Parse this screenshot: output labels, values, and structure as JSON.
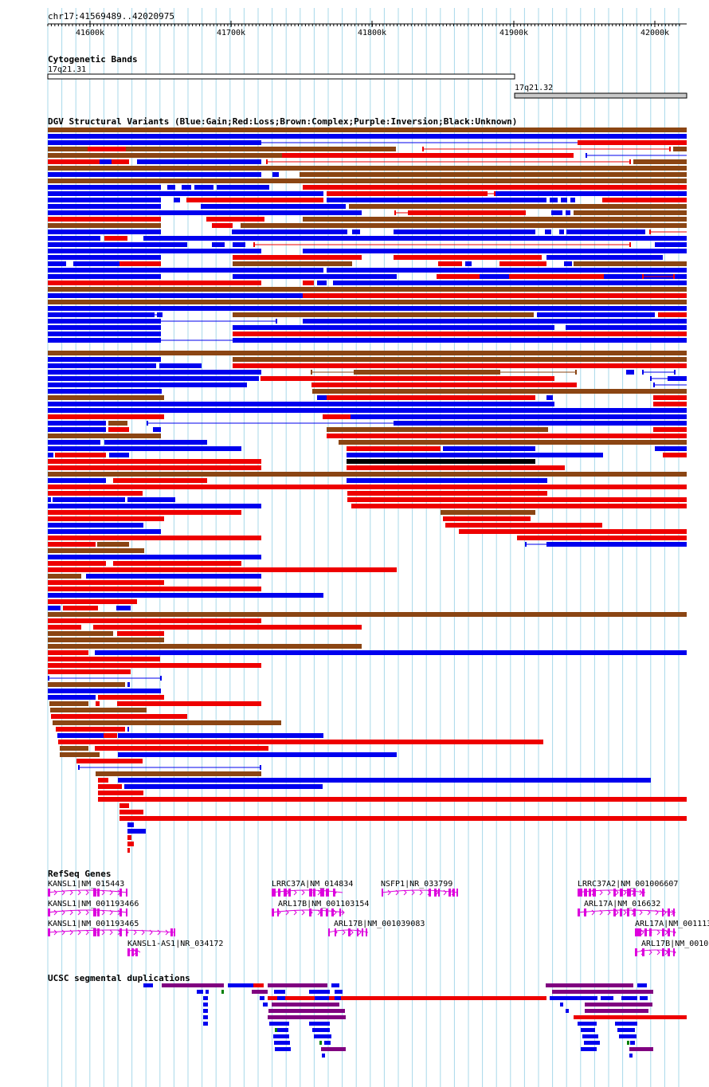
{
  "region": "chr17:41569489..42020975",
  "ruler": {
    "ticks": [
      "41600k",
      "41700k",
      "41800k",
      "41900k",
      "42000k"
    ]
  },
  "tracks": {
    "cytoband": {
      "title": "Cytogenetic Bands",
      "bands": [
        {
          "name": "17q21.31",
          "stain": "white"
        },
        {
          "name": "17q21.32",
          "stain": "gray"
        }
      ]
    },
    "dgv": {
      "title": "DGV Structural Variants (Blue:Gain;Red:Loss;Brown:Complex;Purple:Inversion;Black:Unknown)"
    },
    "refseq": {
      "title": "RefSeq Genes",
      "labels": [
        "KANSL1|NM_015443",
        "KANSL1|NM_001193466",
        "KANSL1|NM_001193465",
        "KANSL1-AS1|NR_034172",
        "LRRC37A|NM_014834",
        "ARL17B|NM_001103154",
        "ARL17B|NM_001039083",
        "NSFP1|NR_033799",
        "LRRC37A2|NM_001006607",
        "ARL17A|NM_016632",
        "ARL17A|NM_001113",
        "ARL17B|NM_0010"
      ]
    },
    "segdup": {
      "title": "UCSC segmental duplications"
    }
  },
  "colors": {
    "gain": "#0000ee",
    "loss": "#ee0000",
    "complex": "#8b4513",
    "unknown": "#000000",
    "gene": "#dd00dd",
    "gridline": "#a8d8ea",
    "segdup_purple": "#800080",
    "segdup_green": "#008000"
  }
}
